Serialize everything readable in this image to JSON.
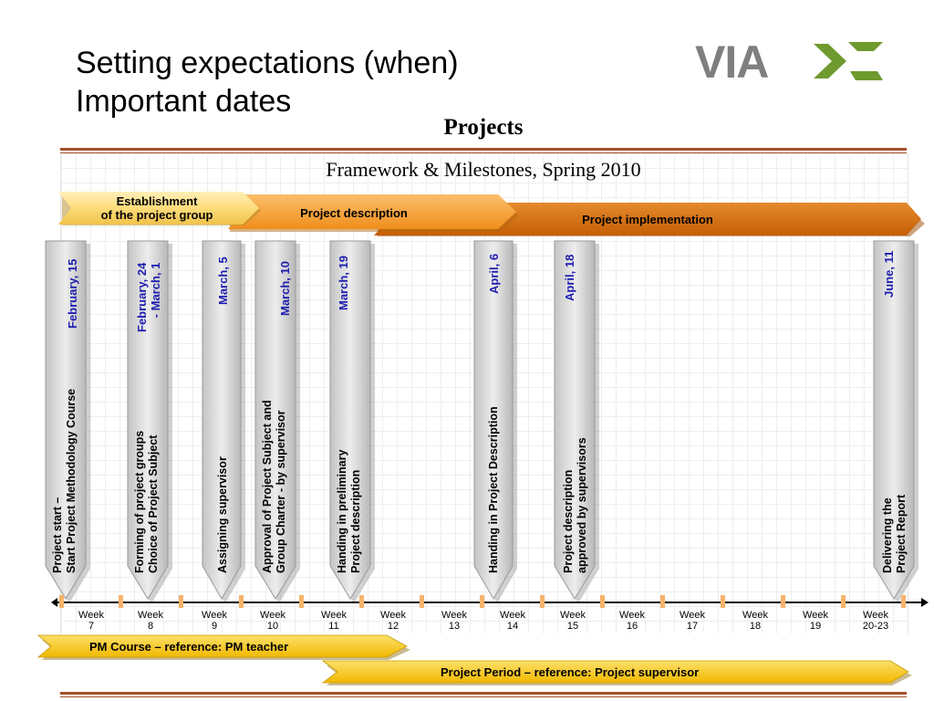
{
  "slide": {
    "title_line1": "Setting expectations (when)",
    "title_line2": "Important dates",
    "logo_text": "VIA"
  },
  "diagram": {
    "heading": "Projects",
    "subheading": "Framework & Milestones, Spring 2010",
    "phases": [
      {
        "label_line1": "Establishment",
        "label_line2": "of the project group"
      },
      {
        "label": "Project description"
      },
      {
        "label": "Project implementation"
      }
    ],
    "milestones": [
      {
        "date_lines": [
          "February, 15"
        ],
        "desc_lines": [
          "Project start –",
          "Start Project Methodology Course"
        ]
      },
      {
        "date_lines": [
          "February, 24",
          "- March, 1"
        ],
        "desc_lines": [
          "Forming of project groups",
          "Choice of Project Subject"
        ]
      },
      {
        "date_lines": [
          "March, 5"
        ],
        "desc_lines": [
          "Assigning supervisor"
        ]
      },
      {
        "date_lines": [
          "March, 10"
        ],
        "desc_lines": [
          "Approval of Project Subject and",
          "Group Charter  - by supervisor"
        ]
      },
      {
        "date_lines": [
          "March, 19"
        ],
        "desc_lines": [
          "Handing in preliminary",
          "Project description"
        ]
      },
      {
        "date_lines": [
          "April, 6"
        ],
        "desc_lines": [
          "Handing in Project Description"
        ]
      },
      {
        "date_lines": [
          "April, 18"
        ],
        "desc_lines": [
          "Project description",
          "approved by supervisors"
        ]
      },
      {
        "date_lines": [
          "June, 11"
        ],
        "desc_lines": [
          "Delivering the",
          "Project Report"
        ]
      }
    ],
    "weeks": [
      {
        "line1": "Week",
        "line2": "7"
      },
      {
        "line1": "Week",
        "line2": "8"
      },
      {
        "line1": "Week",
        "line2": "9"
      },
      {
        "line1": "Week",
        "line2": "10"
      },
      {
        "line1": "Week",
        "line2": "11"
      },
      {
        "line1": "Week",
        "line2": "12"
      },
      {
        "line1": "Week",
        "line2": "13"
      },
      {
        "line1": "Week",
        "line2": "14"
      },
      {
        "line1": "Week",
        "line2": "15"
      },
      {
        "line1": "Week",
        "line2": "16"
      },
      {
        "line1": "Week",
        "line2": "17"
      },
      {
        "line1": "Week",
        "line2": "18"
      },
      {
        "line1": "Week",
        "line2": "19"
      },
      {
        "line1": "Week",
        "line2": "20-23"
      }
    ],
    "bottom_arrows": [
      {
        "label": "PM Course – reference: PM teacher"
      },
      {
        "label": "Project  Period – reference: Project supervisor"
      }
    ]
  },
  "colors": {
    "accent_rule": "#a0522d",
    "phase1_fill": "#fde08a",
    "phase2_fill": "#f59a2a",
    "phase3_fill": "#d46a07",
    "milestone_fill": "#d4d4d4",
    "date_text": "#1f1fb0",
    "tick_orange": "#f6b36b",
    "logo_gray": "#7f7f7f",
    "logo_green": "#6e9a2e"
  }
}
